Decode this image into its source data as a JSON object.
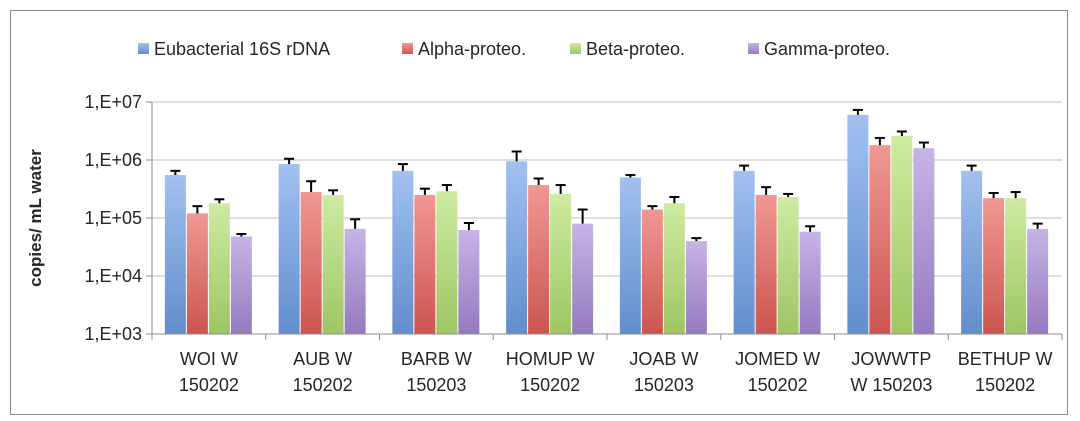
{
  "chart_data": {
    "type": "bar",
    "ylabel": "copies/ mL water",
    "yscale": "log",
    "ylim": [
      1000,
      10000000
    ],
    "yticks": [
      "1,E+03",
      "1,E+04",
      "1,E+05",
      "1,E+06",
      "1,E+07"
    ],
    "grid": true,
    "legend_position": "top",
    "categories": [
      [
        "WOI W",
        "150202"
      ],
      [
        "AUB W",
        "150202"
      ],
      [
        "BARB W",
        "150203"
      ],
      [
        "HOMUP W",
        "150202"
      ],
      [
        "JOAB W",
        "150203"
      ],
      [
        "JOMED W",
        "150202"
      ],
      [
        "JOWWTP",
        "W 150203"
      ],
      [
        "BETHUP W",
        "150202"
      ]
    ],
    "series": [
      {
        "name": "Eubacterial 16S rDNA",
        "color": "#6fa0e8",
        "values": [
          550000,
          850000,
          650000,
          950000,
          500000,
          650000,
          6000000,
          650000
        ],
        "error_upper": [
          650000,
          1050000,
          850000,
          1400000,
          550000,
          800000,
          7300000,
          800000
        ]
      },
      {
        "name": "Alpha-proteo.",
        "color": "#e8605a",
        "values": [
          120000,
          280000,
          250000,
          370000,
          140000,
          250000,
          1800000,
          220000
        ],
        "error_upper": [
          160000,
          430000,
          320000,
          480000,
          160000,
          340000,
          2400000,
          270000
        ]
      },
      {
        "name": "Beta-proteo.",
        "color": "#b4e070",
        "values": [
          180000,
          250000,
          290000,
          260000,
          180000,
          230000,
          2600000,
          220000
        ],
        "error_upper": [
          210000,
          300000,
          370000,
          370000,
          230000,
          260000,
          3100000,
          280000
        ]
      },
      {
        "name": "Gamma-proteo.",
        "color": "#a98bd8",
        "values": [
          48000,
          65000,
          62000,
          80000,
          40000,
          58000,
          1600000,
          65000
        ],
        "error_upper": [
          53000,
          95000,
          82000,
          140000,
          45000,
          72000,
          2000000,
          80000
        ]
      }
    ]
  }
}
